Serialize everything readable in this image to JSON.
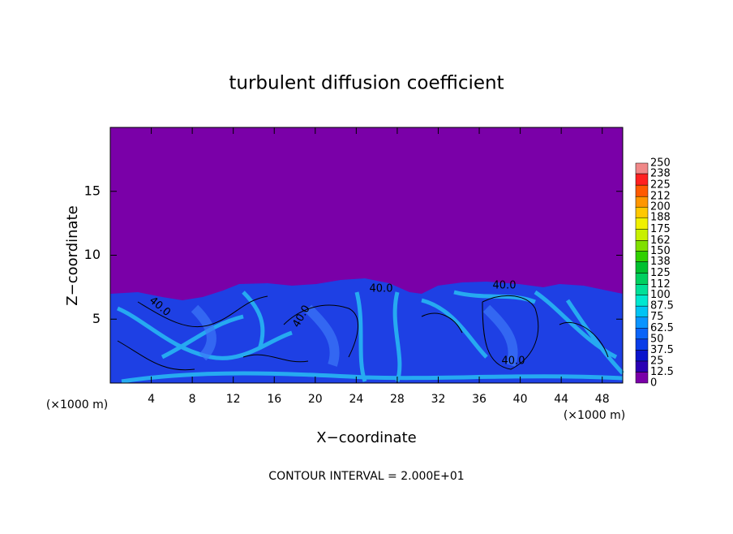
{
  "chart_data": {
    "type": "contour",
    "title": "turbulent diffusion coefficient",
    "xlabel": "X−coordinate",
    "ylabel": "Z−coordinate",
    "x_unit": "(×1000 m)",
    "footer": "CONTOUR INTERVAL = 2.000E+01",
    "xlim": [
      0,
      50
    ],
    "ylim": [
      0,
      20
    ],
    "xticks": [
      4,
      8,
      12,
      16,
      20,
      24,
      28,
      32,
      36,
      40,
      44,
      48
    ],
    "yticks": [
      5,
      10,
      15
    ],
    "contour_labels": [
      "40.0",
      "40.0",
      "40.0",
      "40.0",
      "40.0"
    ],
    "colorbar": {
      "levels": [
        0,
        12.5,
        25,
        37.5,
        50,
        62.5,
        75,
        87.5,
        100,
        112,
        125,
        138,
        150,
        162,
        175,
        188,
        200,
        212,
        225,
        238,
        250
      ],
      "colors": [
        "#7a00a8",
        "#2a00b4",
        "#0a14cc",
        "#0a3ce8",
        "#0a64f8",
        "#0a94ff",
        "#00c4f4",
        "#00e8d0",
        "#00e098",
        "#00d060",
        "#00c030",
        "#30d000",
        "#80e000",
        "#c8f000",
        "#f0f000",
        "#ffc800",
        "#ff9600",
        "#ff5a00",
        "#ff2020",
        "#f08888"
      ]
    }
  }
}
